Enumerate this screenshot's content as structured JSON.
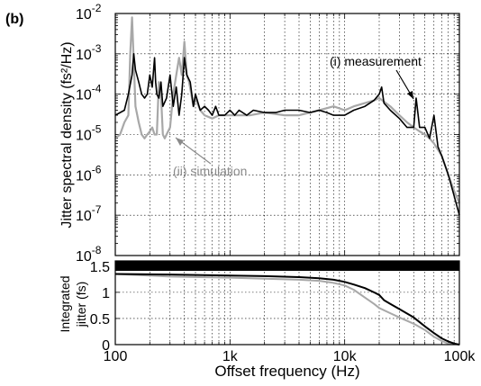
{
  "panel_label": "(b)",
  "chart_data": [
    {
      "type": "line",
      "ylabel": "Jitter spectral density (fs²/Hz)",
      "x_scale": "log",
      "y_scale": "log",
      "xlim": [
        100,
        100000
      ],
      "ylim": [
        1e-08,
        0.01
      ],
      "grid": true,
      "y_ticks": [
        {
          "base": "10",
          "exp": "-2"
        },
        {
          "base": "10",
          "exp": "-3"
        },
        {
          "base": "10",
          "exp": "-4"
        },
        {
          "base": "10",
          "exp": "-5"
        },
        {
          "base": "10",
          "exp": "-6"
        },
        {
          "base": "10",
          "exp": "-7"
        },
        {
          "base": "10",
          "exp": "-8"
        }
      ],
      "annotations": [
        {
          "text": "(i) measurement",
          "color": "#000000"
        },
        {
          "text": "(ii) simulation",
          "color": "#8a8a8a"
        }
      ],
      "series": [
        {
          "name": "(i) measurement",
          "color": "#000000",
          "x": [
            100,
            120,
            130,
            140,
            145,
            150,
            160,
            170,
            180,
            190,
            200,
            210,
            220,
            225,
            230,
            240,
            250,
            260,
            280,
            300,
            320,
            340,
            360,
            380,
            400,
            420,
            450,
            480,
            500,
            550,
            600,
            650,
            700,
            750,
            800,
            900,
            1000,
            1100,
            1200,
            1400,
            1600,
            2000,
            2500,
            3000,
            4000,
            5000,
            6000,
            7000,
            8000,
            10000,
            12000,
            15000,
            18000,
            20000,
            21000,
            22000,
            25000,
            30000,
            35000,
            40000,
            42000,
            45000,
            50000,
            55000,
            60000,
            65000,
            70000,
            80000,
            90000,
            100000
          ],
          "y": [
            3e-05,
            4e-05,
            0.0001,
            0.0003,
            0.001,
            0.0004,
            0.0002,
            0.0001,
            8e-05,
            0.0001,
            0.0003,
            0.00015,
            0.0008,
            0.0002,
            0.0001,
            8e-05,
            0.0002,
            5e-05,
            8e-05,
            0.0003,
            5e-05,
            0.00015,
            3e-05,
            0.0001,
            0.0008,
            0.0003,
            0.0002,
            5e-05,
            0.0001,
            4e-05,
            5e-05,
            4e-05,
            3e-05,
            5e-05,
            3e-05,
            3e-05,
            4e-05,
            3e-05,
            4e-05,
            3e-05,
            4e-05,
            3.5e-05,
            3.5e-05,
            4e-05,
            4e-05,
            3.5e-05,
            4e-05,
            3.5e-05,
            3e-05,
            3e-05,
            4e-05,
            5e-05,
            7e-05,
            0.0001,
            0.00015,
            6e-05,
            4e-05,
            2.5e-05,
            1.5e-05,
            1.5e-05,
            8e-05,
            1.5e-05,
            1.5e-05,
            8e-06,
            3e-05,
            5e-06,
            3e-06,
            1e-06,
            3e-07,
            1e-07
          ]
        },
        {
          "name": "(ii) simulation",
          "color": "#a8a8a8",
          "x": [
            100,
            110,
            120,
            130,
            135,
            140,
            150,
            160,
            170,
            180,
            190,
            200,
            210,
            220,
            230,
            240,
            250,
            260,
            270,
            280,
            300,
            320,
            340,
            360,
            380,
            400,
            420,
            440,
            460,
            480,
            500,
            550,
            600,
            700,
            800,
            1000,
            1200,
            1500,
            2000,
            3000,
            4000,
            5000,
            6000,
            8000,
            10000,
            12000,
            15000,
            18000,
            20000,
            25000,
            30000,
            35000,
            40000,
            45000,
            50000,
            55000,
            60000,
            70000,
            80000,
            90000,
            100000
          ],
          "y": [
            8e-06,
            1e-05,
            2e-05,
            3e-05,
            0.001,
            0.008,
            5e-05,
            2e-05,
            1e-05,
            8e-06,
            1e-05,
            1.2e-05,
            1.5e-05,
            1e-05,
            1e-05,
            0.0002,
            0.0001,
            1e-05,
            8e-06,
            1e-05,
            1.5e-05,
            0.0001,
            0.0003,
            0.0008,
            0.0003,
            0.002,
            0.0003,
            0.0002,
            0.0001,
            5e-05,
            8e-05,
            4e-05,
            3e-05,
            2.5e-05,
            3e-05,
            3e-05,
            3e-05,
            3e-05,
            3.5e-05,
            3e-05,
            3e-05,
            3.5e-05,
            4e-05,
            5e-05,
            4e-05,
            5e-05,
            6e-05,
            7e-05,
            8e-05,
            5e-05,
            3e-05,
            2e-05,
            1.5e-05,
            1.2e-05,
            1e-05,
            8e-06,
            6e-06,
            3e-06,
            1e-06,
            4e-07,
            2e-07
          ]
        }
      ]
    },
    {
      "type": "line",
      "ylabel": "Integrated jitter (fs)",
      "xlabel": "Offset frequency (Hz)",
      "x_scale": "log",
      "xlim": [
        100,
        100000
      ],
      "ylim": [
        0,
        1.6
      ],
      "grid": true,
      "x_ticks": [
        "100",
        "1k",
        "10k",
        "100k"
      ],
      "y_ticks": [
        "0",
        "0.5",
        "1",
        "1.5"
      ],
      "series": [
        {
          "name": "(i) measurement",
          "color": "#000000",
          "x": [
            100,
            300,
            1000,
            2000,
            4000,
            6000,
            8000,
            10000,
            12000,
            15000,
            18000,
            20000,
            22000,
            25000,
            30000,
            40000,
            50000,
            60000,
            70000,
            80000,
            90000,
            100000
          ],
          "y": [
            1.35,
            1.34,
            1.32,
            1.31,
            1.29,
            1.27,
            1.24,
            1.2,
            1.15,
            1.08,
            1.0,
            0.95,
            0.85,
            0.78,
            0.68,
            0.52,
            0.35,
            0.22,
            0.12,
            0.06,
            0.02,
            0.0
          ]
        },
        {
          "name": "(ii) simulation",
          "color": "#a8a8a8",
          "x": [
            100,
            300,
            1000,
            2000,
            4000,
            6000,
            8000,
            10000,
            12000,
            15000,
            18000,
            20000,
            25000,
            30000,
            40000,
            50000,
            60000,
            70000,
            80000,
            100000
          ],
          "y": [
            1.35,
            1.3,
            1.28,
            1.26,
            1.24,
            1.22,
            1.18,
            1.13,
            1.05,
            0.9,
            0.78,
            0.7,
            0.6,
            0.52,
            0.4,
            0.28,
            0.15,
            0.07,
            0.02,
            0.0
          ]
        }
      ]
    }
  ]
}
